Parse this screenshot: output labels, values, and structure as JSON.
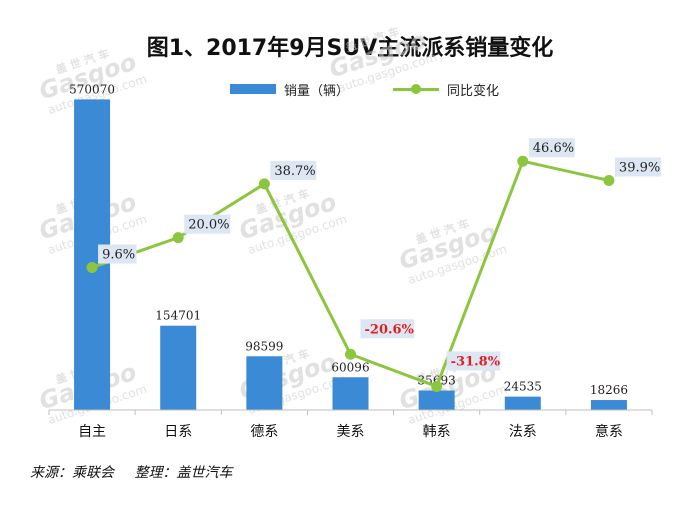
{
  "title": "图1、2017年9月SUV主流派系销量变化",
  "source": {
    "left": "来源：乘联会",
    "right": "整理：盖世汽车"
  },
  "watermark": {
    "brand": "Gasgoo",
    "cn": "盖 世 汽 车",
    "url": "auto.gasgoo.com"
  },
  "colors": {
    "bar": "#3a8ad6",
    "line": "#8cc63f",
    "negative_label": "#e02020",
    "label_box": "#dde6f3"
  },
  "chart_data": {
    "type": "bar",
    "categories": [
      "自主",
      "日系",
      "德系",
      "美系",
      "韩系",
      "法系",
      "意系"
    ],
    "series": [
      {
        "name": "销量（辆）",
        "type": "bar",
        "axis": "left",
        "values": [
          570070,
          154701,
          98599,
          60096,
          35693,
          24535,
          18266
        ],
        "labels": [
          "570070",
          "154701",
          "98599",
          "60096",
          "35693",
          "24535",
          "18266"
        ]
      },
      {
        "name": "同比变化",
        "type": "line",
        "axis": "right",
        "values": [
          9.6,
          20.0,
          38.7,
          -20.6,
          -31.8,
          46.6,
          39.9
        ],
        "labels": [
          "9.6%",
          "20.0%",
          "38.7%",
          "-20.6%",
          "-31.8%",
          "46.6%",
          "39.9%"
        ]
      }
    ],
    "ylim_left": [
      0,
      580000
    ],
    "ylim_right": [
      -40,
      70
    ],
    "legend_position": "top-center",
    "grid": false
  }
}
